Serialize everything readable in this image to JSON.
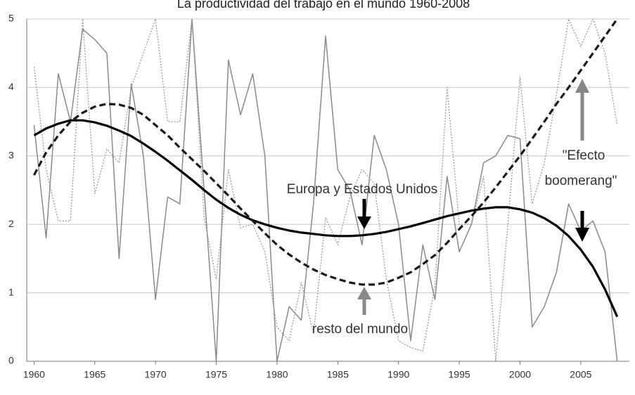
{
  "chart_data": {
    "type": "line",
    "title": "La productividad del trabajo en el mundo 1960-2008",
    "x": [
      1960,
      1961,
      1962,
      1963,
      1964,
      1965,
      1966,
      1967,
      1968,
      1969,
      1970,
      1971,
      1972,
      1973,
      1974,
      1975,
      1976,
      1977,
      1978,
      1979,
      1980,
      1981,
      1982,
      1983,
      1984,
      1985,
      1986,
      1987,
      1988,
      1989,
      1990,
      1991,
      1992,
      1993,
      1994,
      1995,
      1996,
      1997,
      1998,
      1999,
      2000,
      2001,
      2002,
      2003,
      2004,
      2005,
      2006,
      2007,
      2008
    ],
    "series": [
      {
        "color": "#8a8a8a",
        "style": "solid",
        "width": 1.5,
        "values": [
          3.45,
          1.8,
          4.2,
          3.5,
          4.85,
          4.7,
          4.5,
          1.5,
          4.05,
          3.0,
          0.9,
          2.4,
          2.3,
          5.0,
          2.5,
          0,
          4.4,
          3.6,
          4.2,
          3.0,
          0,
          0.8,
          0.6,
          2.3,
          4.75,
          2.8,
          2.5,
          1.7,
          3.3,
          2.8,
          2.0,
          0.3,
          1.7,
          0.9,
          2.7,
          1.6,
          2.0,
          2.9,
          3.0,
          3.3,
          3.25,
          0.5,
          0.8,
          1.3,
          2.3,
          1.9,
          2.05,
          1.6,
          0
        ]
      },
      {
        "color": "#9a9a9a",
        "style": "dotted",
        "width": 1.3,
        "values": [
          4.3,
          2.8,
          2.05,
          2.05,
          5.0,
          2.45,
          3.1,
          2.9,
          4.0,
          4.5,
          5.0,
          3.5,
          3.5,
          5.0,
          2.1,
          1.2,
          2.8,
          1.95,
          2.0,
          1.6,
          0.5,
          0.3,
          1.15,
          0.4,
          2.1,
          1.7,
          2.4,
          2.8,
          2.6,
          1.2,
          0.3,
          0.2,
          0.15,
          1.1,
          4.0,
          2.0,
          2.0,
          2.7,
          0,
          2.0,
          4.15,
          2.3,
          2.9,
          3.9,
          5.0,
          4.6,
          5.0,
          4.5,
          3.45
        ]
      },
      {
        "color": "#000000",
        "style": "solid",
        "width": 3.2,
        "values": [
          3.3,
          3.4,
          3.47,
          3.52,
          3.52,
          3.49,
          3.44,
          3.37,
          3.29,
          3.18,
          3.06,
          2.93,
          2.79,
          2.65,
          2.5,
          2.36,
          2.24,
          2.14,
          2.06,
          2.0,
          1.95,
          1.91,
          1.88,
          1.86,
          1.84,
          1.83,
          1.83,
          1.84,
          1.86,
          1.89,
          1.93,
          1.97,
          2.02,
          2.07,
          2.12,
          2.16,
          2.2,
          2.23,
          2.25,
          2.25,
          2.22,
          2.17,
          2.09,
          1.98,
          1.83,
          1.63,
          1.38,
          1.05,
          0.65
        ]
      },
      {
        "color": "#1a1a1a",
        "style": "dashed",
        "width": 3.2,
        "values": [
          2.72,
          3.05,
          3.3,
          3.5,
          3.63,
          3.72,
          3.76,
          3.75,
          3.7,
          3.6,
          3.45,
          3.3,
          3.12,
          2.95,
          2.78,
          2.6,
          2.42,
          2.23,
          2.05,
          1.87,
          1.7,
          1.56,
          1.44,
          1.34,
          1.26,
          1.2,
          1.15,
          1.12,
          1.12,
          1.15,
          1.22,
          1.3,
          1.42,
          1.55,
          1.73,
          1.93,
          2.12,
          2.32,
          2.54,
          2.77,
          3.0,
          3.25,
          3.5,
          3.76,
          4.0,
          4.25,
          4.5,
          4.75,
          5.0
        ]
      }
    ],
    "xlim": [
      1959.4,
      2009
    ],
    "ylim": [
      0,
      5
    ],
    "xticks": [
      1960,
      1965,
      1970,
      1975,
      1980,
      1985,
      1990,
      1995,
      2000,
      2005
    ],
    "yticks": [
      0,
      1,
      2,
      3,
      4,
      5
    ],
    "grid": true,
    "annotations": [
      "Europa y Estados Unidos",
      "resto del mundo",
      "\"Efecto",
      "boomerang\""
    ]
  }
}
